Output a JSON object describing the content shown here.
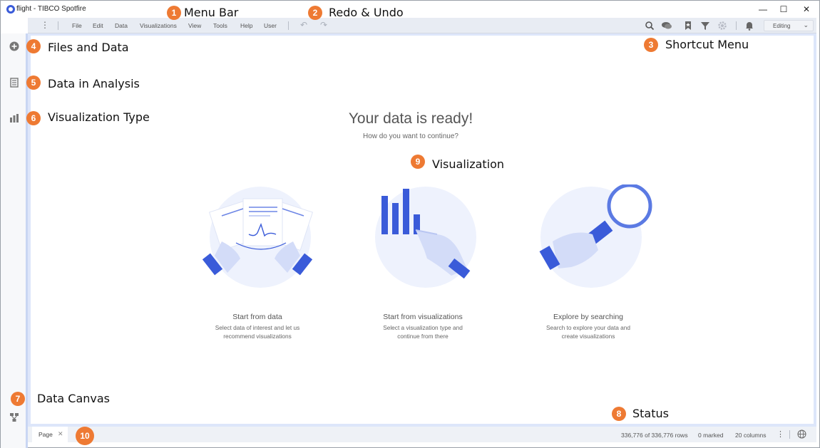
{
  "window": {
    "title": "flight - TIBCO Spotfire",
    "controls": {
      "minimize": "—",
      "maximize": "☐",
      "close": "✕"
    }
  },
  "menubar": {
    "items": [
      "File",
      "Edit",
      "Data",
      "Visualizations",
      "View",
      "Tools",
      "Help",
      "User"
    ],
    "mode": "Editing"
  },
  "toolbar_icons": [
    "search-icon",
    "collaboration-icon",
    "bookmark-icon",
    "filter-icon",
    "settings-icon",
    "notification-icon"
  ],
  "sidebar_icons": [
    "add-data-icon",
    "data-in-analysis-icon",
    "visualization-type-icon",
    "data-canvas-icon"
  ],
  "main": {
    "title": "Your data is ready!",
    "subtitle": "How do you want to continue?",
    "options": [
      {
        "title": "Start from data",
        "desc1": "Select data of interest and let us",
        "desc2": "recommend visualizations"
      },
      {
        "title": "Start from visualizations",
        "desc1": "Select a visualization type and",
        "desc2": "continue from there"
      },
      {
        "title": "Explore by searching",
        "desc1": "Search to explore your data and",
        "desc2": "create visualizations"
      }
    ]
  },
  "status": {
    "page_tab": "Page",
    "rows": "336,776 of 336,776 rows",
    "marked": "0 marked",
    "columns": "20 columns"
  },
  "annotations": [
    {
      "num": "1",
      "label": "Menu Bar"
    },
    {
      "num": "2",
      "label": "Redo & Undo"
    },
    {
      "num": "3",
      "label": "Shortcut Menu"
    },
    {
      "num": "4",
      "label": "Files and Data"
    },
    {
      "num": "5",
      "label": "Data in Analysis"
    },
    {
      "num": "6",
      "label": "Visualization Type"
    },
    {
      "num": "7",
      "label": "Data Canvas"
    },
    {
      "num": "8",
      "label": "Status"
    },
    {
      "num": "9",
      "label": "Visualization"
    },
    {
      "num": "10",
      "label": ""
    }
  ],
  "colors": {
    "accent": "#3a5bd9",
    "badge": "#ee7a33",
    "illustration_bg": "#eef2fd"
  }
}
